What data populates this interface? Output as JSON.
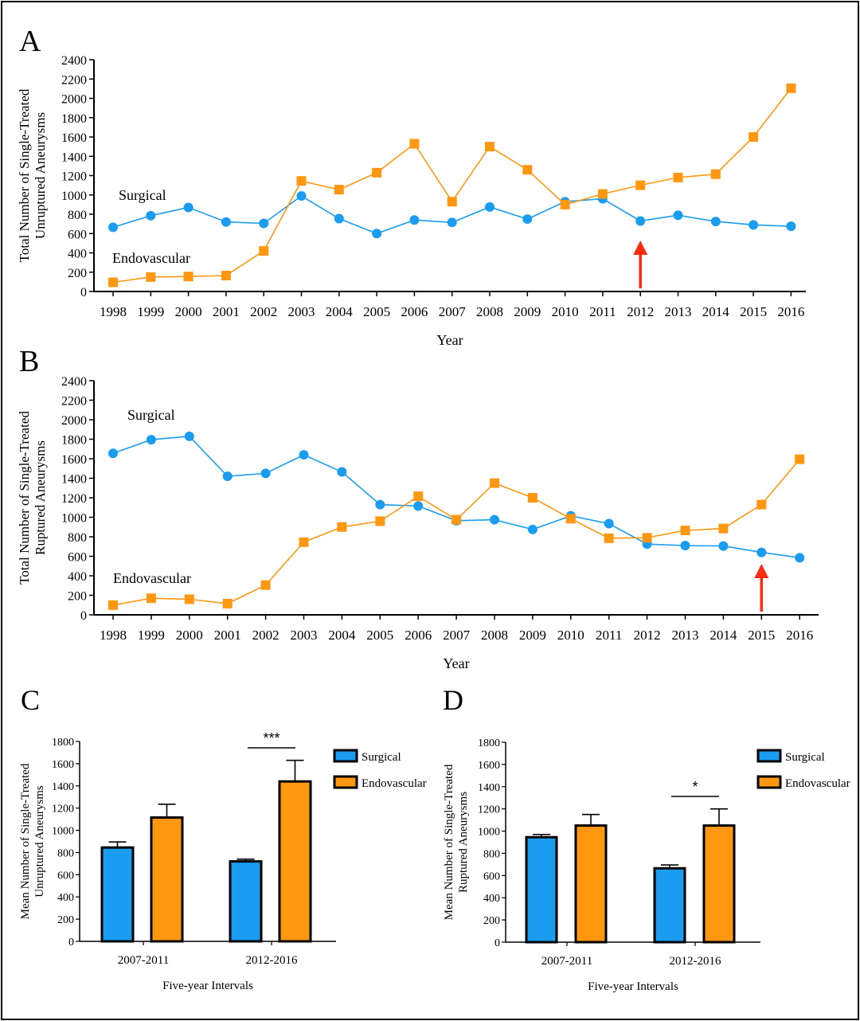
{
  "colors": {
    "surgical": "#1a9cf0",
    "endovascular": "#ff9810",
    "arrow": "#ff2a10",
    "axis": "#000000"
  },
  "chart_data": [
    {
      "panel": "A",
      "type": "line",
      "xlabel": "Year",
      "ylabel": [
        "Total Number of Single-Treated",
        "Unruptured Aneurysms"
      ],
      "ylim": [
        0,
        2400
      ],
      "yticks": [
        0,
        200,
        400,
        600,
        800,
        1000,
        1200,
        1400,
        1600,
        1800,
        2000,
        2200,
        2400
      ],
      "x": [
        "1998",
        "1999",
        "2000",
        "2001",
        "2002",
        "2003",
        "2004",
        "2005",
        "2006",
        "2007",
        "2008",
        "2009",
        "2010",
        "2011",
        "2012",
        "2013",
        "2014",
        "2015",
        "2016"
      ],
      "series": [
        {
          "name": "Surgical",
          "marker": "circle",
          "values": [
            665,
            785,
            870,
            720,
            705,
            990,
            755,
            600,
            740,
            715,
            875,
            750,
            930,
            960,
            730,
            790,
            725,
            690,
            675
          ]
        },
        {
          "name": "Endovascular",
          "marker": "square",
          "values": [
            95,
            150,
            155,
            165,
            420,
            1145,
            1055,
            1230,
            1530,
            930,
            1500,
            1260,
            900,
            1010,
            1100,
            1180,
            1215,
            1600,
            2105
          ]
        }
      ],
      "arrow_at": "2012"
    },
    {
      "panel": "B",
      "type": "line",
      "xlabel": "Year",
      "ylabel": [
        "Total Number of Single-Treated",
        "Ruptured Aneurysms"
      ],
      "ylim": [
        0,
        2400
      ],
      "yticks": [
        0,
        200,
        400,
        600,
        800,
        1000,
        1200,
        1400,
        1600,
        1800,
        2000,
        2200,
        2400
      ],
      "x": [
        "1998",
        "1999",
        "2000",
        "2001",
        "2002",
        "2003",
        "2004",
        "2005",
        "2006",
        "2007",
        "2008",
        "2009",
        "2010",
        "2011",
        "2012",
        "2013",
        "2014",
        "2015",
        "2016"
      ],
      "series": [
        {
          "name": "Surgical",
          "marker": "circle",
          "values": [
            1655,
            1795,
            1830,
            1420,
            1450,
            1640,
            1465,
            1130,
            1115,
            965,
            975,
            875,
            1015,
            935,
            725,
            710,
            705,
            640,
            585
          ]
        },
        {
          "name": "Endovascular",
          "marker": "square",
          "values": [
            100,
            170,
            160,
            115,
            305,
            745,
            900,
            960,
            1215,
            975,
            1350,
            1200,
            985,
            785,
            790,
            865,
            885,
            1130,
            1595
          ]
        }
      ],
      "arrow_at": "2015"
    },
    {
      "panel": "C",
      "type": "bar",
      "xlabel": "Five-year Intervals",
      "ylabel": [
        "Mean Number of Single-Treated",
        "Unruptured Aneurysms"
      ],
      "ylim": [
        0,
        1800
      ],
      "yticks": [
        0,
        200,
        400,
        600,
        800,
        1000,
        1200,
        1400,
        1600,
        1800
      ],
      "categories": [
        "2007-2011",
        "2012-2016"
      ],
      "series": [
        {
          "name": "Surgical",
          "values": [
            845,
            720
          ],
          "errors": [
            50,
            20
          ]
        },
        {
          "name": "Endovascular",
          "values": [
            1115,
            1440
          ],
          "errors": [
            120,
            190
          ]
        }
      ],
      "significance": {
        "category": "2012-2016",
        "label": "***"
      }
    },
    {
      "panel": "D",
      "type": "bar",
      "xlabel": "Five-year Intervals",
      "ylabel": [
        "Mean Number of Single-Treated",
        "Ruptured Aneurysms"
      ],
      "ylim": [
        0,
        1800
      ],
      "yticks": [
        0,
        200,
        400,
        600,
        800,
        1000,
        1200,
        1400,
        1600,
        1800
      ],
      "categories": [
        "2007-2011",
        "2012-2016"
      ],
      "series": [
        {
          "name": "Surgical",
          "values": [
            945,
            665
          ],
          "errors": [
            25,
            30
          ]
        },
        {
          "name": "Endovascular",
          "values": [
            1050,
            1050
          ],
          "errors": [
            100,
            150
          ]
        }
      ],
      "significance": {
        "category": "2012-2016",
        "label": "*"
      }
    }
  ]
}
